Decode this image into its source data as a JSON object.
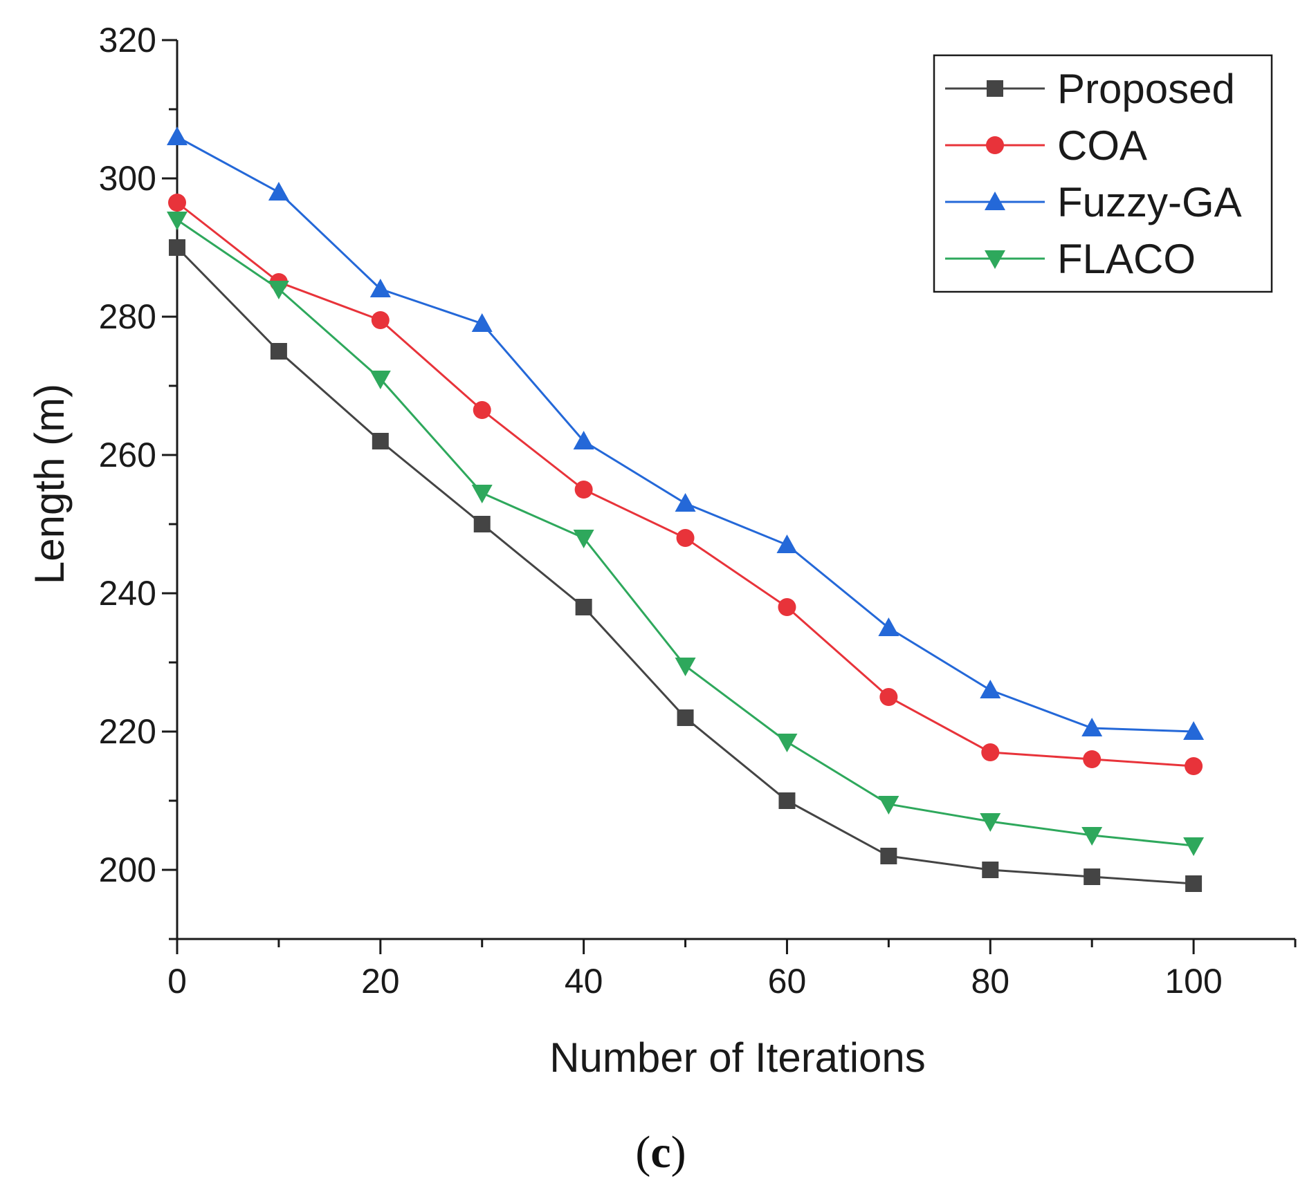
{
  "chart_data": {
    "type": "line",
    "title": "",
    "xlabel": "Number of Iterations",
    "ylabel": "Length (m)",
    "caption": {
      "open": "(",
      "letter": "c",
      "close": ")"
    },
    "xlim": [
      0,
      110
    ],
    "ylim": [
      190,
      320
    ],
    "xticks": [
      0,
      20,
      40,
      60,
      80,
      100
    ],
    "yticks": [
      200,
      220,
      240,
      260,
      280,
      300,
      320
    ],
    "x": [
      0,
      10,
      20,
      30,
      40,
      50,
      60,
      70,
      80,
      90,
      100
    ],
    "legend_position": "top-right",
    "series": [
      {
        "name": "Proposed",
        "color": "#444444",
        "marker": "square",
        "values": [
          290,
          275,
          262,
          250,
          238,
          222,
          210,
          202,
          200,
          199,
          198
        ]
      },
      {
        "name": "COA",
        "color": "#e8333a",
        "marker": "circle",
        "values": [
          296.5,
          285,
          279.5,
          266.5,
          255,
          248,
          238,
          225,
          217,
          216,
          215
        ]
      },
      {
        "name": "Fuzzy-GA",
        "color": "#2468d8",
        "marker": "triangle-up",
        "values": [
          306,
          298,
          284,
          279,
          262,
          253,
          247,
          235,
          226,
          220.5,
          220
        ]
      },
      {
        "name": "FLACO",
        "color": "#2ea85c",
        "marker": "triangle-down",
        "values": [
          294,
          284,
          271,
          254.5,
          248,
          229.5,
          218.5,
          209.5,
          207,
          205,
          203.5
        ]
      }
    ]
  }
}
